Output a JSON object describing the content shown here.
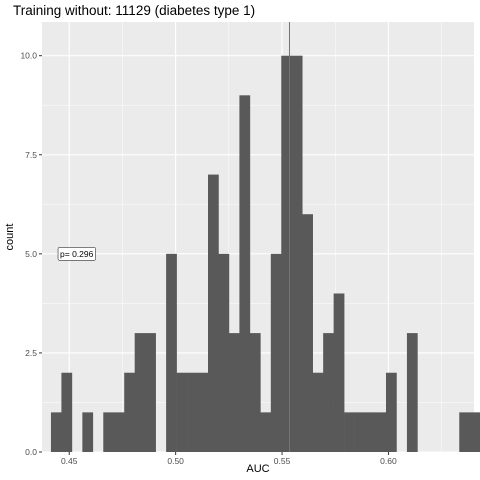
{
  "chart_data": {
    "type": "bar",
    "title": "Training without: 11129 (diabetes type 1)",
    "xlabel": "AUC",
    "ylabel": "count",
    "xlim": [
      0.4372,
      0.6402
    ],
    "ylim": [
      0,
      10.85
    ],
    "x_ticks": [
      0.45,
      0.5,
      0.55,
      0.6
    ],
    "x_tick_labels": [
      "0.45",
      "0.50",
      "0.55",
      "0.60"
    ],
    "y_ticks": [
      0,
      2.5,
      5.0,
      7.5,
      10.0
    ],
    "y_tick_labels": [
      "0.0",
      "2.5",
      "5.0",
      "7.5",
      "10.0"
    ],
    "bin_width": 0.00492,
    "first_bin_left": 0.4414,
    "values": [
      1,
      2,
      0,
      1,
      0,
      1,
      1,
      2,
      3,
      3,
      0,
      5,
      2,
      2,
      2,
      7,
      5,
      3,
      9,
      3,
      1,
      5,
      10,
      10,
      6,
      2,
      3,
      4,
      1,
      1,
      1,
      1,
      2,
      0,
      3,
      0,
      0,
      0,
      0,
      1,
      1
    ],
    "bar_color": "#595959",
    "vline": {
      "x": 0.5535,
      "color": "#4a7cc7"
    },
    "annotation": {
      "text": "p= 0.296",
      "x": 0.4535,
      "y": 5.0
    },
    "grid": true,
    "background": "#ebebeb"
  }
}
